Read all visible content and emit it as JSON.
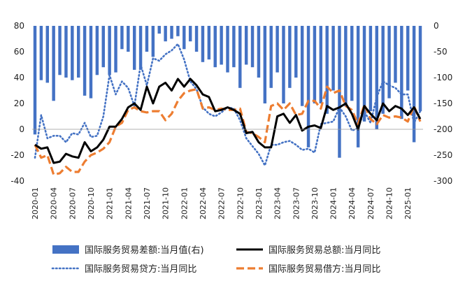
{
  "chart_data": {
    "type": "line",
    "title": "",
    "categories": [
      "2020-01",
      "2020-02",
      "2020-03",
      "2020-04",
      "2020-05",
      "2020-06",
      "2020-07",
      "2020-08",
      "2020-09",
      "2020-10",
      "2020-11",
      "2020-12",
      "2021-01",
      "2021-02",
      "2021-03",
      "2021-04",
      "2021-05",
      "2021-06",
      "2021-07",
      "2021-08",
      "2021-09",
      "2021-10",
      "2021-11",
      "2021-12",
      "2022-01",
      "2022-02",
      "2022-03",
      "2022-04",
      "2022-05",
      "2022-06",
      "2022-07",
      "2022-08",
      "2022-09",
      "2022-10",
      "2022-11",
      "2022-12",
      "2023-01",
      "2023-02",
      "2023-03",
      "2023-04",
      "2023-05",
      "2023-06",
      "2023-07",
      "2023-08",
      "2023-09",
      "2023-10",
      "2023-11",
      "2023-12",
      "2024-01",
      "2024-02",
      "2024-03",
      "2024-04",
      "2024-05",
      "2024-06",
      "2024-07",
      "2024-08",
      "2024-09",
      "2024-10",
      "2024-11",
      "2024-12",
      "2025-01",
      "2025-02",
      "2025-03"
    ],
    "x_tick_labels": [
      "2020-01",
      "2020-04",
      "2020-07",
      "2020-10",
      "2021-01",
      "2021-04",
      "2021-07",
      "2021-10",
      "2022-01",
      "2022-04",
      "2022-07",
      "2022-10",
      "2023-01",
      "2023-04",
      "2023-07",
      "2023-10",
      "2024-01",
      "2024-04",
      "2024-07",
      "2024-10",
      "2025-01"
    ],
    "y_left": {
      "range": [
        -40,
        80
      ],
      "ticks": [
        "80",
        "60",
        "40",
        "20",
        "0",
        "-20",
        "-40"
      ]
    },
    "y_right": {
      "range": [
        -300,
        0
      ],
      "ticks": [
        "0",
        "-50",
        "-100",
        "-150",
        "-200",
        "-250",
        "-300"
      ]
    },
    "grid": false,
    "legend_position": "bottom",
    "series": [
      {
        "name": "国际服务贸易差额:当月值(右)",
        "type": "bar",
        "axis": "right",
        "color": "#4472C4",
        "values": [
          -210,
          -105,
          -110,
          -145,
          -95,
          -100,
          -105,
          -100,
          -135,
          -140,
          -95,
          -80,
          -95,
          -90,
          -45,
          -50,
          -85,
          -85,
          -50,
          -60,
          -15,
          -30,
          -25,
          -20,
          -45,
          -30,
          -50,
          -70,
          -65,
          -80,
          -75,
          -90,
          -80,
          -120,
          -75,
          -80,
          -100,
          -150,
          -120,
          -90,
          -150,
          -120,
          -100,
          -155,
          -235,
          -150,
          -150,
          -170,
          -125,
          -255,
          -155,
          -145,
          -235,
          -185,
          -165,
          -200,
          -170,
          -140,
          -110,
          -180,
          -125,
          -225,
          -165
        ]
      },
      {
        "name": "国际服务贸易总额:当月同比",
        "type": "line",
        "axis": "left",
        "color": "#000000",
        "style": "solid",
        "values": [
          -12,
          -15,
          -14,
          -26,
          -25,
          -19,
          -21,
          -22,
          -10,
          -17,
          -14,
          -8,
          2,
          2,
          8,
          17,
          20,
          15,
          33,
          20,
          33,
          36,
          30,
          39,
          33,
          39,
          34,
          27,
          25,
          14,
          15,
          17,
          15,
          12,
          -3,
          -2,
          -10,
          -14,
          -14,
          10,
          12,
          5,
          11,
          -1,
          2,
          3,
          1,
          18,
          15,
          17,
          20,
          12,
          0,
          18,
          12,
          7,
          20,
          14,
          18,
          16,
          11,
          17,
          8
        ]
      },
      {
        "name": "国际服务贸易贷方:当月同比",
        "type": "line",
        "axis": "left",
        "color": "#4472C4",
        "style": "dotted",
        "values": [
          -22,
          11,
          -7,
          -5,
          -5,
          -10,
          -3,
          -4,
          5,
          -6,
          -5,
          10,
          42,
          27,
          37,
          32,
          18,
          50,
          34,
          55,
          53,
          58,
          61,
          66,
          54,
          37,
          31,
          17,
          12,
          10,
          13,
          17,
          16,
          7,
          -7,
          -13,
          -19,
          -28,
          -12,
          -12,
          -10,
          -9,
          -12,
          -16,
          -15,
          -18,
          4,
          5,
          6,
          17,
          10,
          -1,
          1,
          14,
          5,
          25,
          37,
          34,
          32,
          27,
          27,
          5,
          14
        ]
      },
      {
        "name": "国际服务贸易借方:当月同比",
        "type": "line",
        "axis": "left",
        "color": "#ED7D31",
        "style": "dashed",
        "values": [
          -12,
          -22,
          -20,
          -35,
          -34,
          -29,
          -33,
          -33,
          -25,
          -20,
          -18,
          -15,
          -10,
          2,
          5,
          15,
          17,
          14,
          13,
          14,
          14,
          7,
          12,
          22,
          28,
          30,
          31,
          16,
          17,
          15,
          16,
          15,
          15,
          16,
          -2,
          -3,
          -6,
          -10,
          18,
          20,
          15,
          20,
          11,
          12,
          22,
          22,
          16,
          33,
          28,
          30,
          18,
          15,
          4,
          19,
          8,
          4,
          11,
          9,
          10,
          9,
          6,
          18,
          6
        ]
      }
    ]
  }
}
